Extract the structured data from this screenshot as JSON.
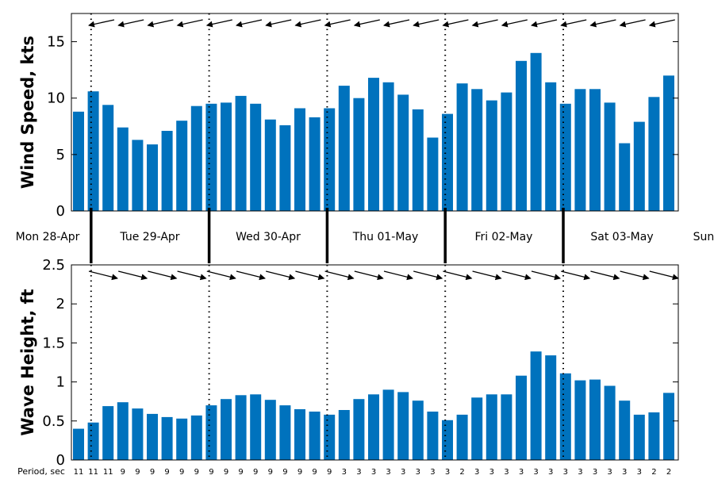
{
  "chart_data": [
    {
      "type": "bar",
      "ylabel": "Wind Speed, kts",
      "ylim": [
        0,
        17.5
      ],
      "yticks": [
        0,
        5,
        10,
        15
      ],
      "values": [
        8.8,
        10.6,
        9.4,
        7.4,
        6.3,
        5.9,
        7.1,
        8.0,
        9.3,
        9.5,
        9.6,
        10.2,
        9.5,
        8.1,
        7.6,
        9.1,
        8.3,
        9.1,
        11.1,
        10.0,
        11.8,
        11.4,
        10.3,
        9.0,
        6.5,
        8.6,
        11.3,
        10.8,
        9.8,
        10.5,
        13.3,
        14.0,
        11.4,
        9.5,
        10.8,
        10.8,
        9.6,
        6.0,
        7.9,
        10.1,
        12.0
      ],
      "direction_arrows": "pointing west, slight north-west tilt",
      "bar_color": "#0072BD"
    },
    {
      "type": "bar",
      "ylabel": "Wave Height, ft",
      "ylim": [
        0,
        2.5
      ],
      "yticks": [
        "0",
        "0.5",
        "1",
        "1.5",
        "2",
        "2.5"
      ],
      "values": [
        0.4,
        0.48,
        0.69,
        0.74,
        0.66,
        0.59,
        0.55,
        0.53,
        0.57,
        0.7,
        0.78,
        0.83,
        0.84,
        0.77,
        0.7,
        0.65,
        0.62,
        0.58,
        0.64,
        0.78,
        0.84,
        0.9,
        0.87,
        0.76,
        0.62,
        0.51,
        0.58,
        0.8,
        0.84,
        0.84,
        1.08,
        1.39,
        1.34,
        1.11,
        1.02,
        1.03,
        0.95,
        0.76,
        0.58,
        0.61,
        0.86
      ],
      "direction_arrows": "pointing east-south-east",
      "period_title": "Period, sec",
      "periods": [
        "11",
        "11",
        "11",
        "9",
        "9",
        "9",
        "9",
        "9",
        "9",
        "9",
        "9",
        "9",
        "9",
        "9",
        "9",
        "9",
        "9",
        "9",
        "3",
        "3",
        "3",
        "3",
        "3",
        "3",
        "3",
        "3",
        "2",
        "3",
        "3",
        "3",
        "3",
        "3",
        "3",
        "3",
        "3",
        "3",
        "3",
        "3",
        "3",
        "2",
        "2"
      ],
      "bar_color": "#0072BD"
    }
  ],
  "day_labels": [
    "Mon 28-Apr",
    "Tue 29-Apr",
    "Wed 30-Apr",
    "Thu 01-May",
    "Fri 02-May",
    "Sat 03-May",
    "Sun"
  ]
}
